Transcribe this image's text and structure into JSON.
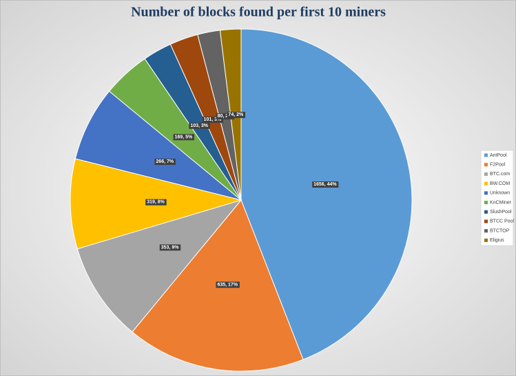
{
  "chart_data": {
    "type": "pie",
    "title": "Number of blocks found per first 10 miners",
    "categories": [
      "AntPool",
      "F2Pool",
      "BTC.com",
      "BW.COM",
      "Unknown",
      "KnCMiner",
      "SlushPool",
      "BTCC Pool",
      "BTCTOP",
      "Eligius"
    ],
    "values": [
      1656,
      635,
      353,
      319,
      266,
      169,
      103,
      101,
      80,
      74
    ],
    "value_labels": [
      "1656, 44%",
      "635, 17%",
      "353, 9%",
      "319, 8%",
      "266, 7%",
      "169, 5%",
      "103, 3%",
      "101, 3%",
      "80, 2%",
      "74, 2%"
    ],
    "colors": [
      "#5b9bd5",
      "#ed7d31",
      "#a5a5a5",
      "#ffc000",
      "#4472c4",
      "#70ad47",
      "#255e91",
      "#9e480e",
      "#636363",
      "#997300"
    ],
    "legend": "right"
  }
}
